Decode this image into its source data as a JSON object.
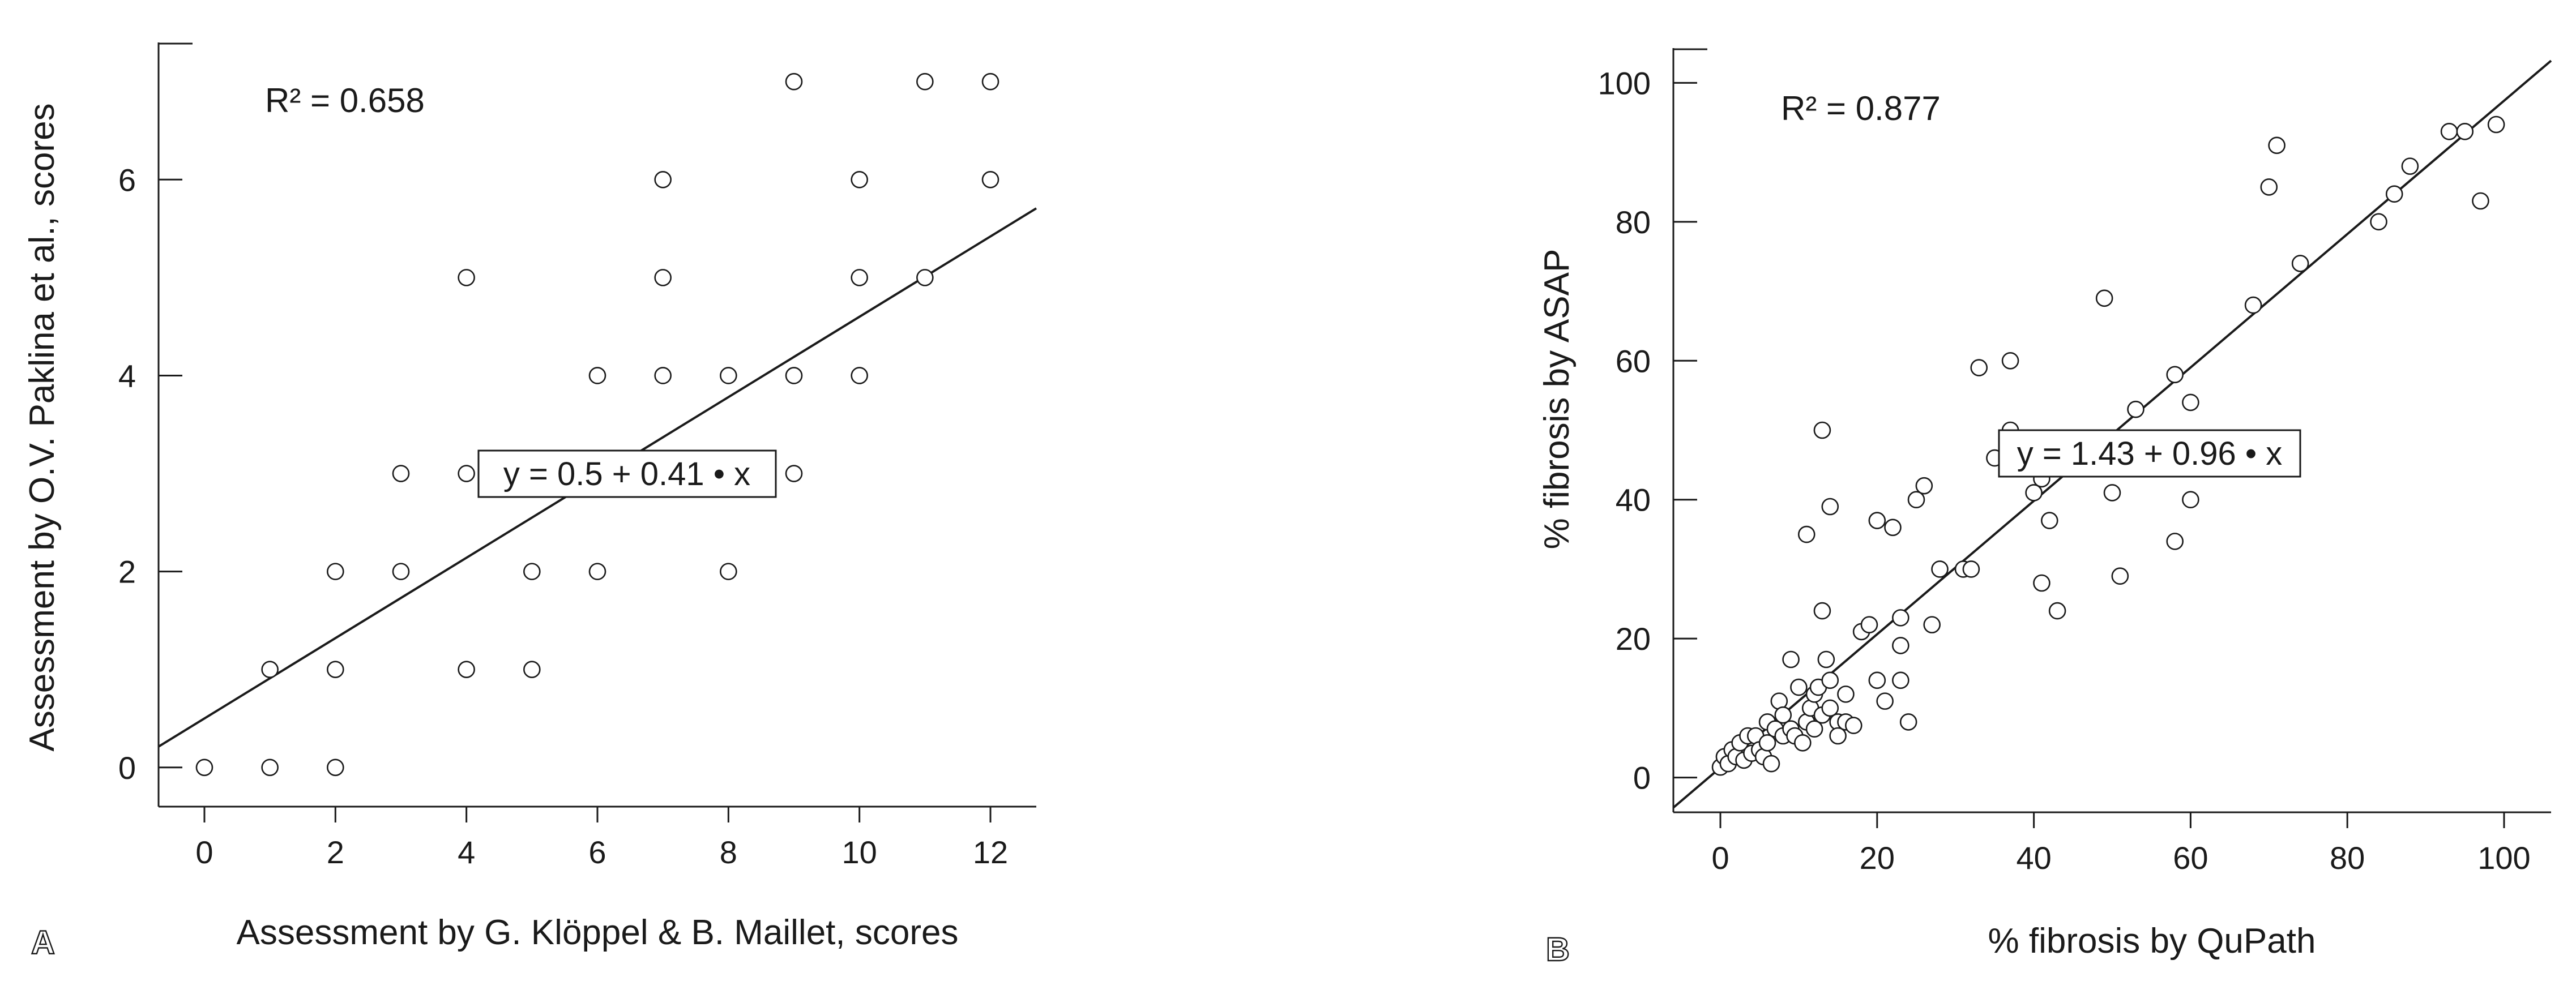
{
  "chart_data": [
    {
      "type": "scatter",
      "panel_label": "A",
      "xlabel": "Assessment by G. Klöppel & B. Maillet, scores",
      "ylabel": "Assessment by O.V. Paklina et al., scores",
      "xlim": [
        -0.7,
        12.7
      ],
      "ylim": [
        -0.4,
        7.4
      ],
      "xticks": [
        0,
        2,
        4,
        6,
        8,
        10,
        12
      ],
      "yticks": [
        0,
        2,
        4,
        6
      ],
      "r2_label": "R² = 0.658",
      "equation_label": "y = 0.5 + 0.41 • x",
      "regression": {
        "intercept": 0.5,
        "slope": 0.41
      },
      "grid": false,
      "points": [
        [
          0,
          0
        ],
        [
          1,
          0
        ],
        [
          2,
          0
        ],
        [
          1,
          1
        ],
        [
          2,
          1
        ],
        [
          4,
          1
        ],
        [
          5,
          1
        ],
        [
          2,
          2
        ],
        [
          3,
          2
        ],
        [
          5,
          2
        ],
        [
          6,
          2
        ],
        [
          8,
          2
        ],
        [
          3,
          3
        ],
        [
          4,
          3
        ],
        [
          9,
          3
        ],
        [
          6,
          4
        ],
        [
          7,
          4
        ],
        [
          8,
          4
        ],
        [
          9,
          4
        ],
        [
          10,
          4
        ],
        [
          4,
          5
        ],
        [
          7,
          5
        ],
        [
          10,
          5
        ],
        [
          11,
          5
        ],
        [
          7,
          6
        ],
        [
          10,
          6
        ],
        [
          12,
          6
        ],
        [
          9,
          7
        ],
        [
          11,
          7
        ],
        [
          12,
          7
        ]
      ]
    },
    {
      "type": "scatter",
      "panel_label": "B",
      "xlabel": "% fibrosis by QuPath",
      "ylabel": "% fibrosis by ASAP",
      "xlim": [
        -6,
        106
      ],
      "ylim": [
        -5,
        105
      ],
      "xticks": [
        0,
        20,
        40,
        60,
        80,
        100
      ],
      "yticks": [
        0,
        20,
        40,
        60,
        80,
        100
      ],
      "r2_label": "R² = 0.877",
      "equation_label": "y = 1.43 + 0.96 • x",
      "regression": {
        "intercept": 1.43,
        "slope": 0.96
      },
      "grid": false,
      "points": [
        [
          0,
          1.5
        ],
        [
          0.5,
          3
        ],
        [
          1,
          2
        ],
        [
          1.5,
          4
        ],
        [
          2,
          3
        ],
        [
          2.5,
          5
        ],
        [
          3,
          2.5
        ],
        [
          3.5,
          6
        ],
        [
          4,
          3.5
        ],
        [
          4.5,
          6
        ],
        [
          5,
          4
        ],
        [
          5.5,
          3
        ],
        [
          6,
          5
        ],
        [
          6,
          8
        ],
        [
          6.5,
          2
        ],
        [
          7,
          7
        ],
        [
          7.5,
          11
        ],
        [
          8,
          6
        ],
        [
          8,
          9
        ],
        [
          9,
          7
        ],
        [
          9.5,
          6
        ],
        [
          10,
          13
        ],
        [
          10.5,
          5
        ],
        [
          11,
          8
        ],
        [
          11.5,
          10
        ],
        [
          12,
          7
        ],
        [
          12,
          12
        ],
        [
          12.5,
          13
        ],
        [
          13,
          9
        ],
        [
          13.5,
          17
        ],
        [
          9,
          17
        ],
        [
          14,
          10
        ],
        [
          14,
          14
        ],
        [
          15,
          8
        ],
        [
          15,
          6
        ],
        [
          16,
          8
        ],
        [
          16,
          12
        ],
        [
          17,
          7.5
        ],
        [
          18,
          21
        ],
        [
          19,
          22
        ],
        [
          20,
          14
        ],
        [
          21,
          11
        ],
        [
          22,
          36
        ],
        [
          23,
          23
        ],
        [
          23,
          19
        ],
        [
          23,
          14
        ],
        [
          24,
          8
        ],
        [
          25,
          40
        ],
        [
          27,
          22
        ],
        [
          28,
          30
        ],
        [
          31,
          30
        ],
        [
          32,
          30
        ],
        [
          20,
          37
        ],
        [
          11,
          35
        ],
        [
          14,
          39
        ],
        [
          13,
          24
        ],
        [
          13,
          50
        ],
        [
          26,
          42
        ],
        [
          33,
          59
        ],
        [
          35,
          46
        ],
        [
          37,
          60
        ],
        [
          37,
          50
        ],
        [
          40,
          41
        ],
        [
          41,
          28
        ],
        [
          41,
          43
        ],
        [
          42,
          37
        ],
        [
          43,
          24
        ],
        [
          49,
          69
        ],
        [
          50,
          41
        ],
        [
          51,
          29
        ],
        [
          53,
          53
        ],
        [
          58,
          34
        ],
        [
          58,
          58
        ],
        [
          60,
          40
        ],
        [
          60,
          54
        ],
        [
          68,
          68
        ],
        [
          70,
          85
        ],
        [
          71,
          91
        ],
        [
          74,
          74
        ],
        [
          84,
          80
        ],
        [
          86,
          84
        ],
        [
          88,
          88
        ],
        [
          93,
          93
        ],
        [
          95,
          93
        ],
        [
          97,
          83
        ],
        [
          99,
          94
        ]
      ]
    }
  ]
}
